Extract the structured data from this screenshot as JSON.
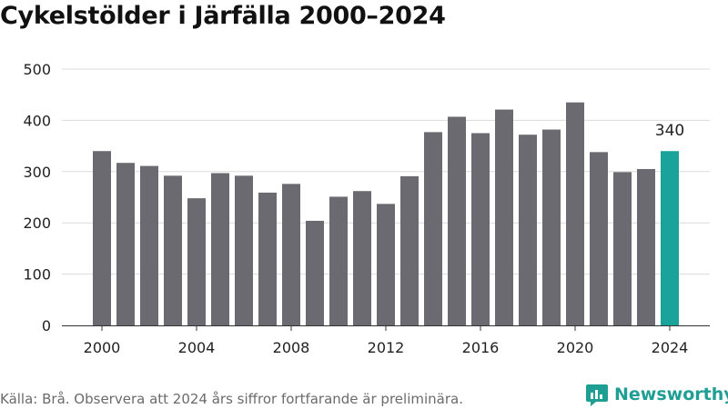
{
  "title": "Cykelstölder i Järfälla 2000–2024",
  "source_note": "Källa: Brå. Observera att 2024 års siffror fortfarande är preliminära.",
  "brand": {
    "name": "Newsworthy",
    "icon": "newsworthy-logo-icon",
    "color": "#1f9e93"
  },
  "chart_data": {
    "type": "bar",
    "x": [
      2000,
      2001,
      2002,
      2003,
      2004,
      2005,
      2006,
      2007,
      2008,
      2009,
      2010,
      2011,
      2012,
      2013,
      2014,
      2015,
      2016,
      2017,
      2018,
      2019,
      2020,
      2021,
      2022,
      2023,
      2024
    ],
    "values": [
      340,
      317,
      311,
      292,
      248,
      297,
      292,
      259,
      276,
      204,
      251,
      262,
      237,
      291,
      377,
      407,
      375,
      421,
      372,
      382,
      435,
      338,
      299,
      305,
      340
    ],
    "xticks": [
      "2000",
      "2004",
      "2008",
      "2012",
      "2016",
      "2020",
      "2024"
    ],
    "yticks": [
      "0",
      "100",
      "200",
      "300",
      "400",
      "500"
    ],
    "ylim": [
      0,
      500
    ],
    "xlabel": "",
    "ylabel": "",
    "annotation": {
      "x": 2024,
      "text": "340"
    },
    "bar_color": "#6b6a70",
    "highlight_color": "#1aa39a",
    "grid": true
  }
}
